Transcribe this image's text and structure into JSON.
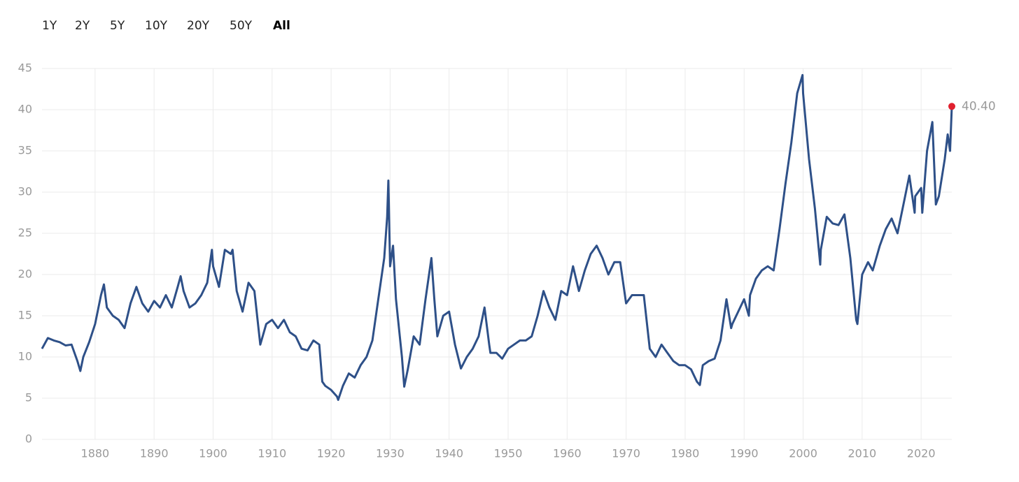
{
  "range_buttons": [
    "1Y",
    "2Y",
    "5Y",
    "10Y",
    "20Y",
    "50Y",
    "All"
  ],
  "active_range": 6,
  "chart_data": {
    "type": "line",
    "x": [
      1871,
      1872,
      1873,
      1874,
      1875,
      1876,
      1877,
      1877.5,
      1878,
      1879,
      1880,
      1881,
      1881.5,
      1882,
      1883,
      1884,
      1885,
      1886,
      1887,
      1888,
      1889,
      1890,
      1891,
      1892,
      1893,
      1894,
      1894.5,
      1895,
      1896,
      1897,
      1898,
      1899,
      1899.8,
      1900,
      1901,
      1902,
      1903,
      1903.3,
      1904,
      1905,
      1906,
      1907,
      1908,
      1909,
      1910,
      1911,
      1912,
      1913,
      1914,
      1915,
      1916,
      1917,
      1918,
      1918.5,
      1919,
      1920,
      1921,
      1921.2,
      1922,
      1923,
      1924,
      1925,
      1926,
      1927,
      1928,
      1929,
      1929.5,
      1929.7,
      1930,
      1930.5,
      1931,
      1932,
      1932.4,
      1933,
      1934,
      1935,
      1936,
      1937,
      1937.5,
      1938,
      1939,
      1940,
      1941,
      1942,
      1943,
      1944,
      1945,
      1946,
      1946.8,
      1947,
      1948,
      1949,
      1950,
      1951,
      1952,
      1953,
      1954,
      1955,
      1956,
      1957,
      1958,
      1959,
      1960,
      1961,
      1962,
      1963,
      1964,
      1965,
      1966,
      1967,
      1968,
      1969,
      1970,
      1971,
      1972,
      1973,
      1974,
      1975,
      1976,
      1977,
      1978,
      1979,
      1980,
      1981,
      1982,
      1982.5,
      1983,
      1984,
      1985,
      1986,
      1987,
      1987.8,
      1988,
      1989,
      1990,
      1990.8,
      1991,
      1992,
      1993,
      1994,
      1995,
      1996,
      1997,
      1998,
      1999,
      1999.9,
      2000,
      2001,
      2002,
      2002.9,
      2003,
      2004,
      2005,
      2006,
      2007,
      2008,
      2009,
      2009.2,
      2010,
      2011,
      2011.8,
      2012,
      2013,
      2014,
      2015,
      2016,
      2017,
      2018,
      2018.9,
      2019,
      2020,
      2020.2,
      2021,
      2021.9,
      2022.5,
      2023,
      2024,
      2024.5,
      2024.9,
      2025.2
    ],
    "series": [
      {
        "color": "#2e5088",
        "values": [
          11,
          12.3,
          12,
          11.8,
          11.4,
          11.5,
          9.5,
          8.3,
          10,
          11.8,
          14,
          17.5,
          18.8,
          16,
          15,
          14.5,
          13.5,
          16.5,
          18.5,
          16.5,
          15.5,
          16.8,
          16,
          17.5,
          16,
          18.5,
          19.8,
          18,
          16,
          16.5,
          17.5,
          19,
          23,
          21,
          18.5,
          23,
          22.5,
          23,
          18,
          15.5,
          19,
          18,
          11.5,
          14,
          14.5,
          13.5,
          14.5,
          13,
          12.5,
          11,
          10.8,
          12,
          11.5,
          7,
          6.5,
          6,
          5.2,
          4.8,
          6.5,
          8,
          7.5,
          9,
          10,
          12,
          17,
          22,
          27,
          31.4,
          21,
          23.5,
          17,
          10,
          6.4,
          8.5,
          12.5,
          11.5,
          17,
          22,
          17,
          12.5,
          15,
          15.5,
          11.5,
          8.6,
          10,
          11,
          12.5,
          16,
          11.5,
          10.5,
          10.5,
          9.8,
          11,
          11.5,
          12,
          12,
          12.5,
          15,
          18,
          16,
          14.5,
          18,
          17.5,
          21,
          18,
          20.5,
          22.5,
          23.5,
          22,
          20,
          21.5,
          21.5,
          16.5,
          17.5,
          17.5,
          17.5,
          11,
          10,
          11.5,
          10.5,
          9.5,
          9,
          9,
          8.5,
          7,
          6.6,
          9,
          9.5,
          9.8,
          12,
          17,
          13.5,
          14,
          15.5,
          17,
          15,
          17.5,
          19.5,
          20.5,
          21,
          20.5,
          25.5,
          31,
          36,
          42,
          44.2,
          42,
          34,
          28,
          21.2,
          23,
          27,
          26.2,
          26,
          27.3,
          22,
          14.5,
          14,
          20,
          21.5,
          20.5,
          21,
          23.5,
          25.5,
          26.8,
          25,
          28.5,
          32,
          27.5,
          29.5,
          30.5,
          27.5,
          35,
          38.5,
          28.5,
          29.5,
          34,
          37,
          35,
          40.4
        ]
      }
    ],
    "xlim": [
      1871,
      2025.2
    ],
    "ylim": [
      0,
      45
    ],
    "xticks": [
      1880,
      1890,
      1900,
      1910,
      1920,
      1930,
      1940,
      1950,
      1960,
      1970,
      1980,
      1990,
      2000,
      2010,
      2020
    ],
    "yticks": [
      0,
      5,
      10,
      15,
      20,
      25,
      30,
      35,
      40,
      45
    ],
    "grid": true,
    "annotation": {
      "x": 2025.2,
      "y": 40.4,
      "label": "40.40",
      "color": "#e0202e"
    }
  }
}
